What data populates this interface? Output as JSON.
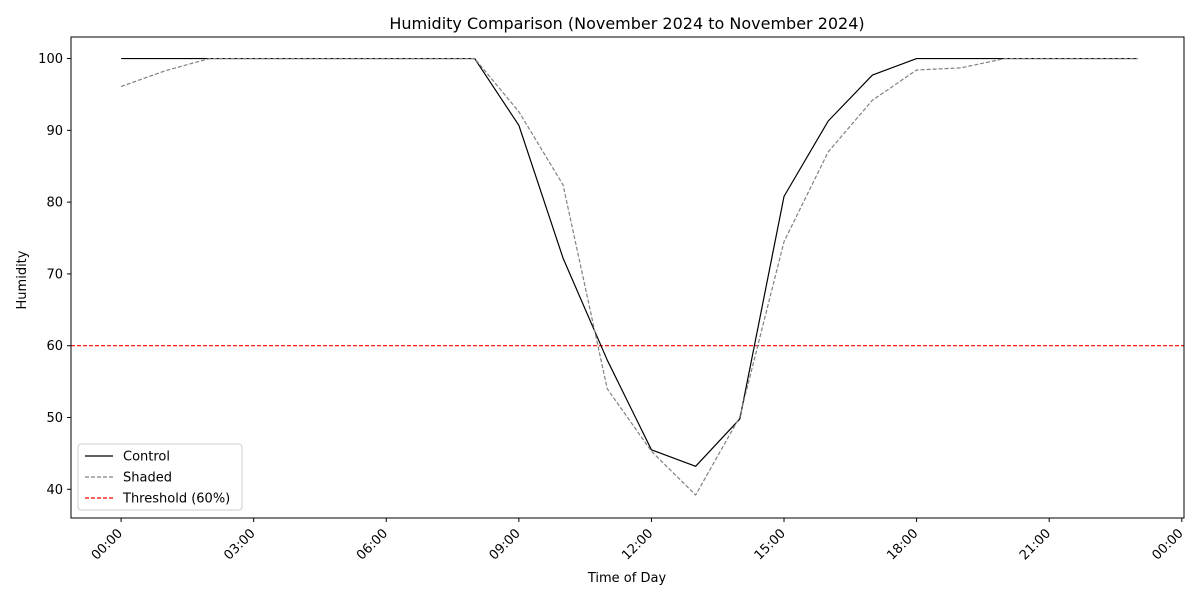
{
  "chart_data": {
    "type": "line",
    "title": "Humidity Comparison (November 2024 to November 2024)",
    "xlabel": "Time of Day",
    "ylabel": "Humidity",
    "x_hours": [
      0,
      1,
      2,
      3,
      4,
      5,
      6,
      7,
      8,
      9,
      10,
      11,
      12,
      13,
      14,
      15,
      16,
      17,
      18,
      19,
      20,
      21,
      22,
      23
    ],
    "x_ticks": [
      "00:00",
      "03:00",
      "06:00",
      "09:00",
      "12:00",
      "15:00",
      "18:00",
      "21:00",
      "00:00"
    ],
    "xlim": [
      "-01:08",
      "24:03"
    ],
    "y_ticks": [
      40,
      50,
      60,
      70,
      80,
      90,
      100
    ],
    "ylim": [
      36,
      103
    ],
    "series": [
      {
        "name": "Control",
        "color": "#000000",
        "dash": "solid",
        "values": [
          100,
          100,
          100,
          100,
          100,
          100,
          100,
          100,
          100,
          90.7,
          72.2,
          58.0,
          45.5,
          43.2,
          49.8,
          80.8,
          91.3,
          97.7,
          100,
          100,
          100,
          100,
          100,
          100
        ]
      },
      {
        "name": "Shaded",
        "color": "#808080",
        "dash": "dashed",
        "values": [
          96.1,
          98.3,
          100,
          100,
          100,
          100,
          100,
          100,
          100,
          92.6,
          82.4,
          54.0,
          45.3,
          39.2,
          50.1,
          74.5,
          87.0,
          94.2,
          98.4,
          98.7,
          100,
          100,
          100,
          100
        ]
      }
    ],
    "threshold": {
      "name": "Threshold (60%)",
      "value": 60,
      "color": "#ff0000",
      "dash": "dashed"
    },
    "legend_position": "lower-left",
    "grid": false
  }
}
